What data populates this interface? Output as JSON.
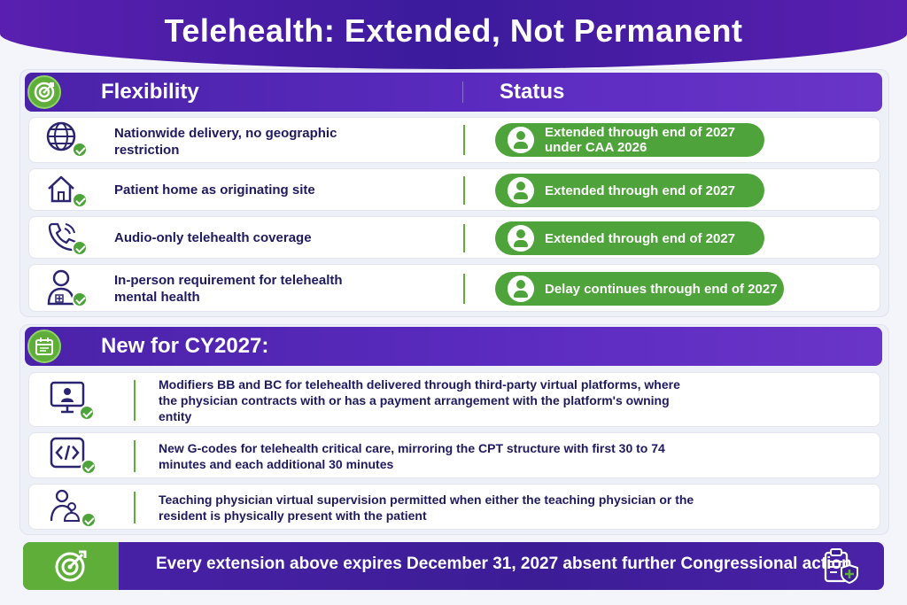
{
  "title": "Telehealth: Extended, Not Permanent",
  "flexibility": {
    "header_left": "Flexibility",
    "header_right": "Status",
    "rows": [
      {
        "icon": "globe-icon",
        "label": "Nationwide delivery, no geographic restriction",
        "status": "Extended through end of 2027 under CAA 2026"
      },
      {
        "icon": "home-icon",
        "label": "Patient home as originating site",
        "status": "Extended through end of 2027"
      },
      {
        "icon": "phone-icon",
        "label": "Audio-only telehealth coverage",
        "status": "Extended through end of 2027"
      },
      {
        "icon": "clinician-icon",
        "label": "In-person requirement for telehealth mental health",
        "status": "Delay continues through end of 2027"
      }
    ]
  },
  "new_section": {
    "header": "New for CY2027:",
    "rows": [
      {
        "icon": "monitor-user-icon",
        "text": "Modifiers BB and BC for telehealth delivered through third-party virtual platforms, where the physician contracts with or has a payment arrangement with the platform's owning entity"
      },
      {
        "icon": "code-icon",
        "text": "New G-codes for telehealth critical care, mirroring the CPT structure with first 30 to 74 minutes and each additional 30 minutes"
      },
      {
        "icon": "people-icon",
        "text": "Teaching physician virtual supervision permitted when either the teaching physician or the resident is physically present with the patient"
      }
    ]
  },
  "footer": {
    "text": "Every extension above expires December 31, 2027 absent further Congressional action."
  },
  "colors": {
    "purple": "#4a22a8",
    "green": "#4ea43a",
    "text": "#1e1a5e"
  }
}
